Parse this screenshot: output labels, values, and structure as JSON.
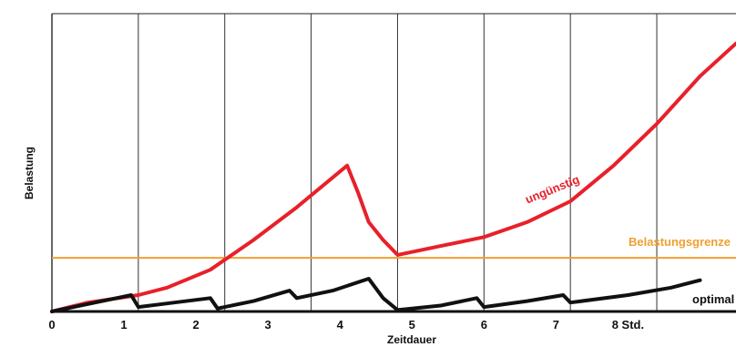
{
  "chart_data": {
    "type": "line",
    "xlabel": "Zeitdauer",
    "ylabel": "Belastung",
    "xlim": [
      0,
      9.5
    ],
    "ylim": [
      0,
      10
    ],
    "x_ticks": [
      {
        "x": 0,
        "label": "0"
      },
      {
        "x": 1,
        "label": "1"
      },
      {
        "x": 2,
        "label": "2"
      },
      {
        "x": 3,
        "label": "3"
      },
      {
        "x": 4,
        "label": "4"
      },
      {
        "x": 5,
        "label": "5"
      },
      {
        "x": 6,
        "label": "6"
      },
      {
        "x": 7,
        "label": "7"
      },
      {
        "x": 8,
        "label": "8 Std."
      }
    ],
    "vertical_lines": [
      0,
      1.2,
      2.4,
      3.6,
      4.8,
      6.0,
      7.2,
      8.4
    ],
    "threshold": {
      "name": "Belastungsgrenze",
      "y": 1.8,
      "color": "#f0a030"
    },
    "series": [
      {
        "name": "ungünstig",
        "color": "#e8202a",
        "points": [
          [
            0,
            0
          ],
          [
            0.5,
            0.3
          ],
          [
            1.2,
            0.55
          ],
          [
            1.6,
            0.8
          ],
          [
            2.2,
            1.4
          ],
          [
            2.8,
            2.4
          ],
          [
            3.4,
            3.5
          ],
          [
            4.1,
            4.9
          ],
          [
            4.25,
            4.0
          ],
          [
            4.4,
            3.0
          ],
          [
            4.6,
            2.4
          ],
          [
            4.8,
            1.9
          ],
          [
            5.4,
            2.2
          ],
          [
            6.0,
            2.5
          ],
          [
            6.6,
            3.0
          ],
          [
            7.2,
            3.7
          ],
          [
            7.8,
            4.9
          ],
          [
            8.4,
            6.3
          ],
          [
            9.0,
            7.9
          ],
          [
            9.5,
            9.0
          ]
        ]
      },
      {
        "name": "optimal",
        "color": "#111111",
        "points": [
          [
            0,
            0
          ],
          [
            0.6,
            0.3
          ],
          [
            1.1,
            0.55
          ],
          [
            1.2,
            0.15
          ],
          [
            1.7,
            0.3
          ],
          [
            2.2,
            0.45
          ],
          [
            2.3,
            0.1
          ],
          [
            2.8,
            0.35
          ],
          [
            3.3,
            0.7
          ],
          [
            3.4,
            0.45
          ],
          [
            3.9,
            0.7
          ],
          [
            4.4,
            1.1
          ],
          [
            4.6,
            0.45
          ],
          [
            4.8,
            0.05
          ],
          [
            5.4,
            0.2
          ],
          [
            5.9,
            0.45
          ],
          [
            6.0,
            0.15
          ],
          [
            6.6,
            0.35
          ],
          [
            7.1,
            0.55
          ],
          [
            7.2,
            0.3
          ],
          [
            8.0,
            0.55
          ],
          [
            8.6,
            0.8
          ],
          [
            9.0,
            1.05
          ]
        ]
      }
    ]
  }
}
